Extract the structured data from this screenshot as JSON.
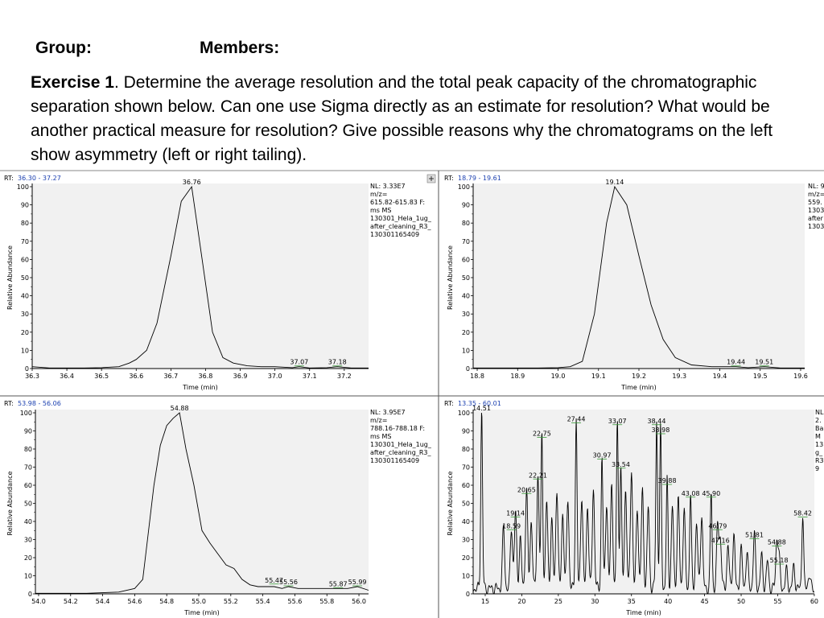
{
  "header": {
    "group_label": "Group:",
    "members_label": "Members:",
    "exercise_bold": "Exercise 1",
    "exercise_text": ". Determine the average resolution and the total peak capacity of the chromatographic separation shown below. Can one use Sigma directly as an estimate for resolution? What would be another practical measure for resolution? Give possible reasons why the chromatograms on the left show asymmetry (left or right tailing)."
  },
  "chart_data": [
    {
      "type": "line",
      "rt_label": "RT:",
      "rt_range": "36.30 - 37.27",
      "xlabel": "Time (min)",
      "ylabel": "Relative Abundance",
      "xlim": [
        36.3,
        37.27
      ],
      "ylim": [
        0,
        100
      ],
      "xticks": [
        "36.3",
        "36.4",
        "36.5",
        "36.6",
        "36.7",
        "36.8",
        "36.9",
        "37.0",
        "37.1",
        "37.2"
      ],
      "yticks": [
        "0",
        "10",
        "20",
        "30",
        "40",
        "50",
        "60",
        "70",
        "80",
        "90",
        "100"
      ],
      "info": [
        "NL: 3.33E7",
        "m/z=",
        "615.82-615.83 F:",
        "ms  MS",
        "130301_Hela_1ug_",
        "after_cleaning_R3_",
        "130301165409"
      ],
      "peak_labels": [
        {
          "x": 36.76,
          "y": 100,
          "text": "36.76"
        },
        {
          "x": 37.07,
          "y": 1,
          "text": "37.07"
        },
        {
          "x": 37.18,
          "y": 1,
          "text": "37.18"
        }
      ],
      "x": [
        36.3,
        36.35,
        36.4,
        36.45,
        36.5,
        36.55,
        36.58,
        36.6,
        36.63,
        36.66,
        36.7,
        36.73,
        36.76,
        36.79,
        36.82,
        36.85,
        36.88,
        36.92,
        36.96,
        37.0,
        37.05,
        37.07,
        37.1,
        37.15,
        37.18,
        37.22,
        37.27
      ],
      "y": [
        1,
        0.3,
        0.3,
        0.3,
        0.5,
        1,
        3,
        5,
        10,
        25,
        62,
        92,
        100,
        60,
        20,
        6,
        3,
        1.5,
        1,
        1,
        0.5,
        1,
        0.3,
        0.5,
        1,
        0.3,
        0.3
      ]
    },
    {
      "type": "line",
      "rt_label": "RT:",
      "rt_range": "18.79 - 19.61",
      "xlabel": "Time (min)",
      "ylabel": "Relative Abundance",
      "xlim": [
        18.79,
        19.61
      ],
      "ylim": [
        0,
        100
      ],
      "xticks": [
        "18.8",
        "18.9",
        "19.0",
        "19.1",
        "19.2",
        "19.3",
        "19.4",
        "19.5",
        "19.6"
      ],
      "yticks": [
        "0",
        "10",
        "20",
        "30",
        "40",
        "50",
        "60",
        "70",
        "80",
        "90",
        "100"
      ],
      "info": [
        "NL: 9",
        "m/z=",
        "559.",
        "1303",
        "after",
        "1303"
      ],
      "peak_labels": [
        {
          "x": 19.14,
          "y": 100,
          "text": "19.14"
        },
        {
          "x": 19.44,
          "y": 1,
          "text": "19.44"
        },
        {
          "x": 19.51,
          "y": 1,
          "text": "19.51"
        }
      ],
      "x": [
        18.79,
        18.85,
        18.9,
        18.95,
        19.0,
        19.03,
        19.06,
        19.09,
        19.12,
        19.14,
        19.17,
        19.2,
        19.23,
        19.26,
        19.29,
        19.33,
        19.38,
        19.44,
        19.47,
        19.51,
        19.55,
        19.61
      ],
      "y": [
        0.3,
        0.3,
        0.3,
        0.3,
        0.5,
        1,
        4,
        30,
        80,
        100,
        90,
        62,
        35,
        16,
        6,
        2,
        1,
        1,
        0.5,
        1,
        0.3,
        0.3
      ]
    },
    {
      "type": "line",
      "rt_label": "RT:",
      "rt_range": "53.98 - 56.06",
      "xlabel": "Time (min)",
      "ylabel": "Relative Abundance",
      "xlim": [
        53.98,
        56.06
      ],
      "ylim": [
        0,
        100
      ],
      "xticks": [
        "54.0",
        "54.2",
        "54.4",
        "54.6",
        "54.8",
        "55.0",
        "55.2",
        "55.4",
        "55.6",
        "55.8",
        "56.0"
      ],
      "yticks": [
        "0",
        "10",
        "20",
        "30",
        "40",
        "50",
        "60",
        "70",
        "80",
        "90",
        "100"
      ],
      "info": [
        "NL: 3.95E7",
        "m/z=",
        "788.16-788.18 F:",
        "ms  MS",
        "130301_Hela_1ug_",
        "after_cleaning_R3_",
        "130301165409"
      ],
      "peak_labels": [
        {
          "x": 54.88,
          "y": 100,
          "text": "54.88"
        },
        {
          "x": 55.47,
          "y": 5,
          "text": "55.47"
        },
        {
          "x": 55.56,
          "y": 4,
          "text": "55.56"
        },
        {
          "x": 55.87,
          "y": 3,
          "text": "55.87"
        },
        {
          "x": 55.99,
          "y": 4,
          "text": "55.99"
        }
      ],
      "x": [
        53.98,
        54.1,
        54.3,
        54.5,
        54.6,
        54.65,
        54.68,
        54.72,
        54.76,
        54.8,
        54.84,
        54.88,
        54.92,
        54.97,
        55.02,
        55.07,
        55.12,
        55.17,
        55.22,
        55.27,
        55.32,
        55.37,
        55.42,
        55.47,
        55.52,
        55.56,
        55.62,
        55.7,
        55.8,
        55.87,
        55.93,
        55.99,
        56.06
      ],
      "y": [
        0.3,
        0.3,
        0.3,
        1,
        3,
        8,
        30,
        60,
        82,
        93,
        97,
        100,
        80,
        60,
        35,
        28,
        22,
        16,
        14,
        8,
        5,
        4,
        4,
        4,
        3,
        4,
        3,
        3,
        3,
        3,
        3,
        4,
        2
      ]
    },
    {
      "type": "line",
      "rt_label": "RT:",
      "rt_range": "13.35 - 60.01",
      "xlabel": "Time (min)",
      "ylabel": "Relative Abundance",
      "xlim": [
        13.35,
        60.01
      ],
      "ylim": [
        0,
        100
      ],
      "xticks": [
        "15",
        "20",
        "25",
        "30",
        "35",
        "40",
        "45",
        "50",
        "55",
        "60"
      ],
      "yticks": [
        "0",
        "10",
        "20",
        "30",
        "40",
        "50",
        "60",
        "70",
        "80",
        "90",
        "100"
      ],
      "info": [
        "NL",
        "2.",
        "Ba",
        "M",
        "13",
        "g_",
        "R3",
        "9"
      ],
      "peak_labels": [
        {
          "x": 14.51,
          "y": 100,
          "text": "14.51"
        },
        {
          "x": 18.59,
          "y": 35,
          "text": "18.59"
        },
        {
          "x": 19.14,
          "y": 42,
          "text": "19.14"
        },
        {
          "x": 20.65,
          "y": 55,
          "text": "20.65"
        },
        {
          "x": 22.21,
          "y": 63,
          "text": "22.21"
        },
        {
          "x": 22.75,
          "y": 86,
          "text": "22.75"
        },
        {
          "x": 27.44,
          "y": 94,
          "text": "27.44"
        },
        {
          "x": 30.97,
          "y": 74,
          "text": "30.97"
        },
        {
          "x": 33.07,
          "y": 93,
          "text": "33.07"
        },
        {
          "x": 33.54,
          "y": 69,
          "text": "33.54"
        },
        {
          "x": 38.44,
          "y": 93,
          "text": "38.44"
        },
        {
          "x": 38.98,
          "y": 88,
          "text": "38.98"
        },
        {
          "x": 39.88,
          "y": 60,
          "text": "39.88"
        },
        {
          "x": 43.08,
          "y": 53,
          "text": "43.08"
        },
        {
          "x": 45.9,
          "y": 53,
          "text": "45.90"
        },
        {
          "x": 46.79,
          "y": 35,
          "text": "46.79"
        },
        {
          "x": 47.16,
          "y": 27,
          "text": "47.16"
        },
        {
          "x": 51.81,
          "y": 30,
          "text": "51.81"
        },
        {
          "x": 54.88,
          "y": 26,
          "text": "54.88"
        },
        {
          "x": 55.18,
          "y": 16,
          "text": "55.18"
        },
        {
          "x": 58.42,
          "y": 42,
          "text": "58.42"
        }
      ],
      "peaks": [
        [
          14.51,
          100,
          0.12
        ],
        [
          17.5,
          33,
          0.15
        ],
        [
          18.59,
          34,
          0.15
        ],
        [
          19.14,
          42,
          0.15
        ],
        [
          19.8,
          28,
          0.15
        ],
        [
          20.65,
          55,
          0.15
        ],
        [
          21.3,
          38,
          0.15
        ],
        [
          22.21,
          63,
          0.15
        ],
        [
          22.75,
          86,
          0.12
        ],
        [
          23.4,
          48,
          0.15
        ],
        [
          24.1,
          38,
          0.15
        ],
        [
          24.8,
          56,
          0.15
        ],
        [
          25.6,
          42,
          0.15
        ],
        [
          26.3,
          50,
          0.15
        ],
        [
          27.44,
          94,
          0.12
        ],
        [
          28.2,
          52,
          0.15
        ],
        [
          29.0,
          46,
          0.15
        ],
        [
          29.8,
          55,
          0.15
        ],
        [
          30.97,
          74,
          0.12
        ],
        [
          31.6,
          48,
          0.15
        ],
        [
          32.3,
          57,
          0.15
        ],
        [
          33.07,
          93,
          0.12
        ],
        [
          33.54,
          69,
          0.12
        ],
        [
          34.2,
          55,
          0.15
        ],
        [
          35.0,
          66,
          0.15
        ],
        [
          35.8,
          45,
          0.15
        ],
        [
          36.5,
          54,
          0.15
        ],
        [
          37.3,
          45,
          0.15
        ],
        [
          38.44,
          93,
          0.12
        ],
        [
          38.98,
          88,
          0.12
        ],
        [
          39.88,
          60,
          0.12
        ],
        [
          40.6,
          45,
          0.15
        ],
        [
          41.4,
          49,
          0.15
        ],
        [
          42.2,
          44,
          0.15
        ],
        [
          43.08,
          53,
          0.12
        ],
        [
          43.9,
          36,
          0.15
        ],
        [
          44.6,
          41,
          0.15
        ],
        [
          45.9,
          53,
          0.12
        ],
        [
          46.79,
          35,
          0.15
        ],
        [
          47.16,
          27,
          0.15
        ],
        [
          48.2,
          24,
          0.15
        ],
        [
          49.0,
          30,
          0.15
        ],
        [
          50.0,
          22,
          0.15
        ],
        [
          50.8,
          20,
          0.15
        ],
        [
          51.81,
          30,
          0.15
        ],
        [
          52.8,
          18,
          0.15
        ],
        [
          53.6,
          15,
          0.15
        ],
        [
          54.88,
          26,
          0.15
        ],
        [
          55.18,
          16,
          0.15
        ],
        [
          56.2,
          10,
          0.15
        ],
        [
          57.2,
          12,
          0.15
        ],
        [
          58.42,
          42,
          0.12
        ],
        [
          59.3,
          8,
          0.15
        ]
      ]
    }
  ]
}
